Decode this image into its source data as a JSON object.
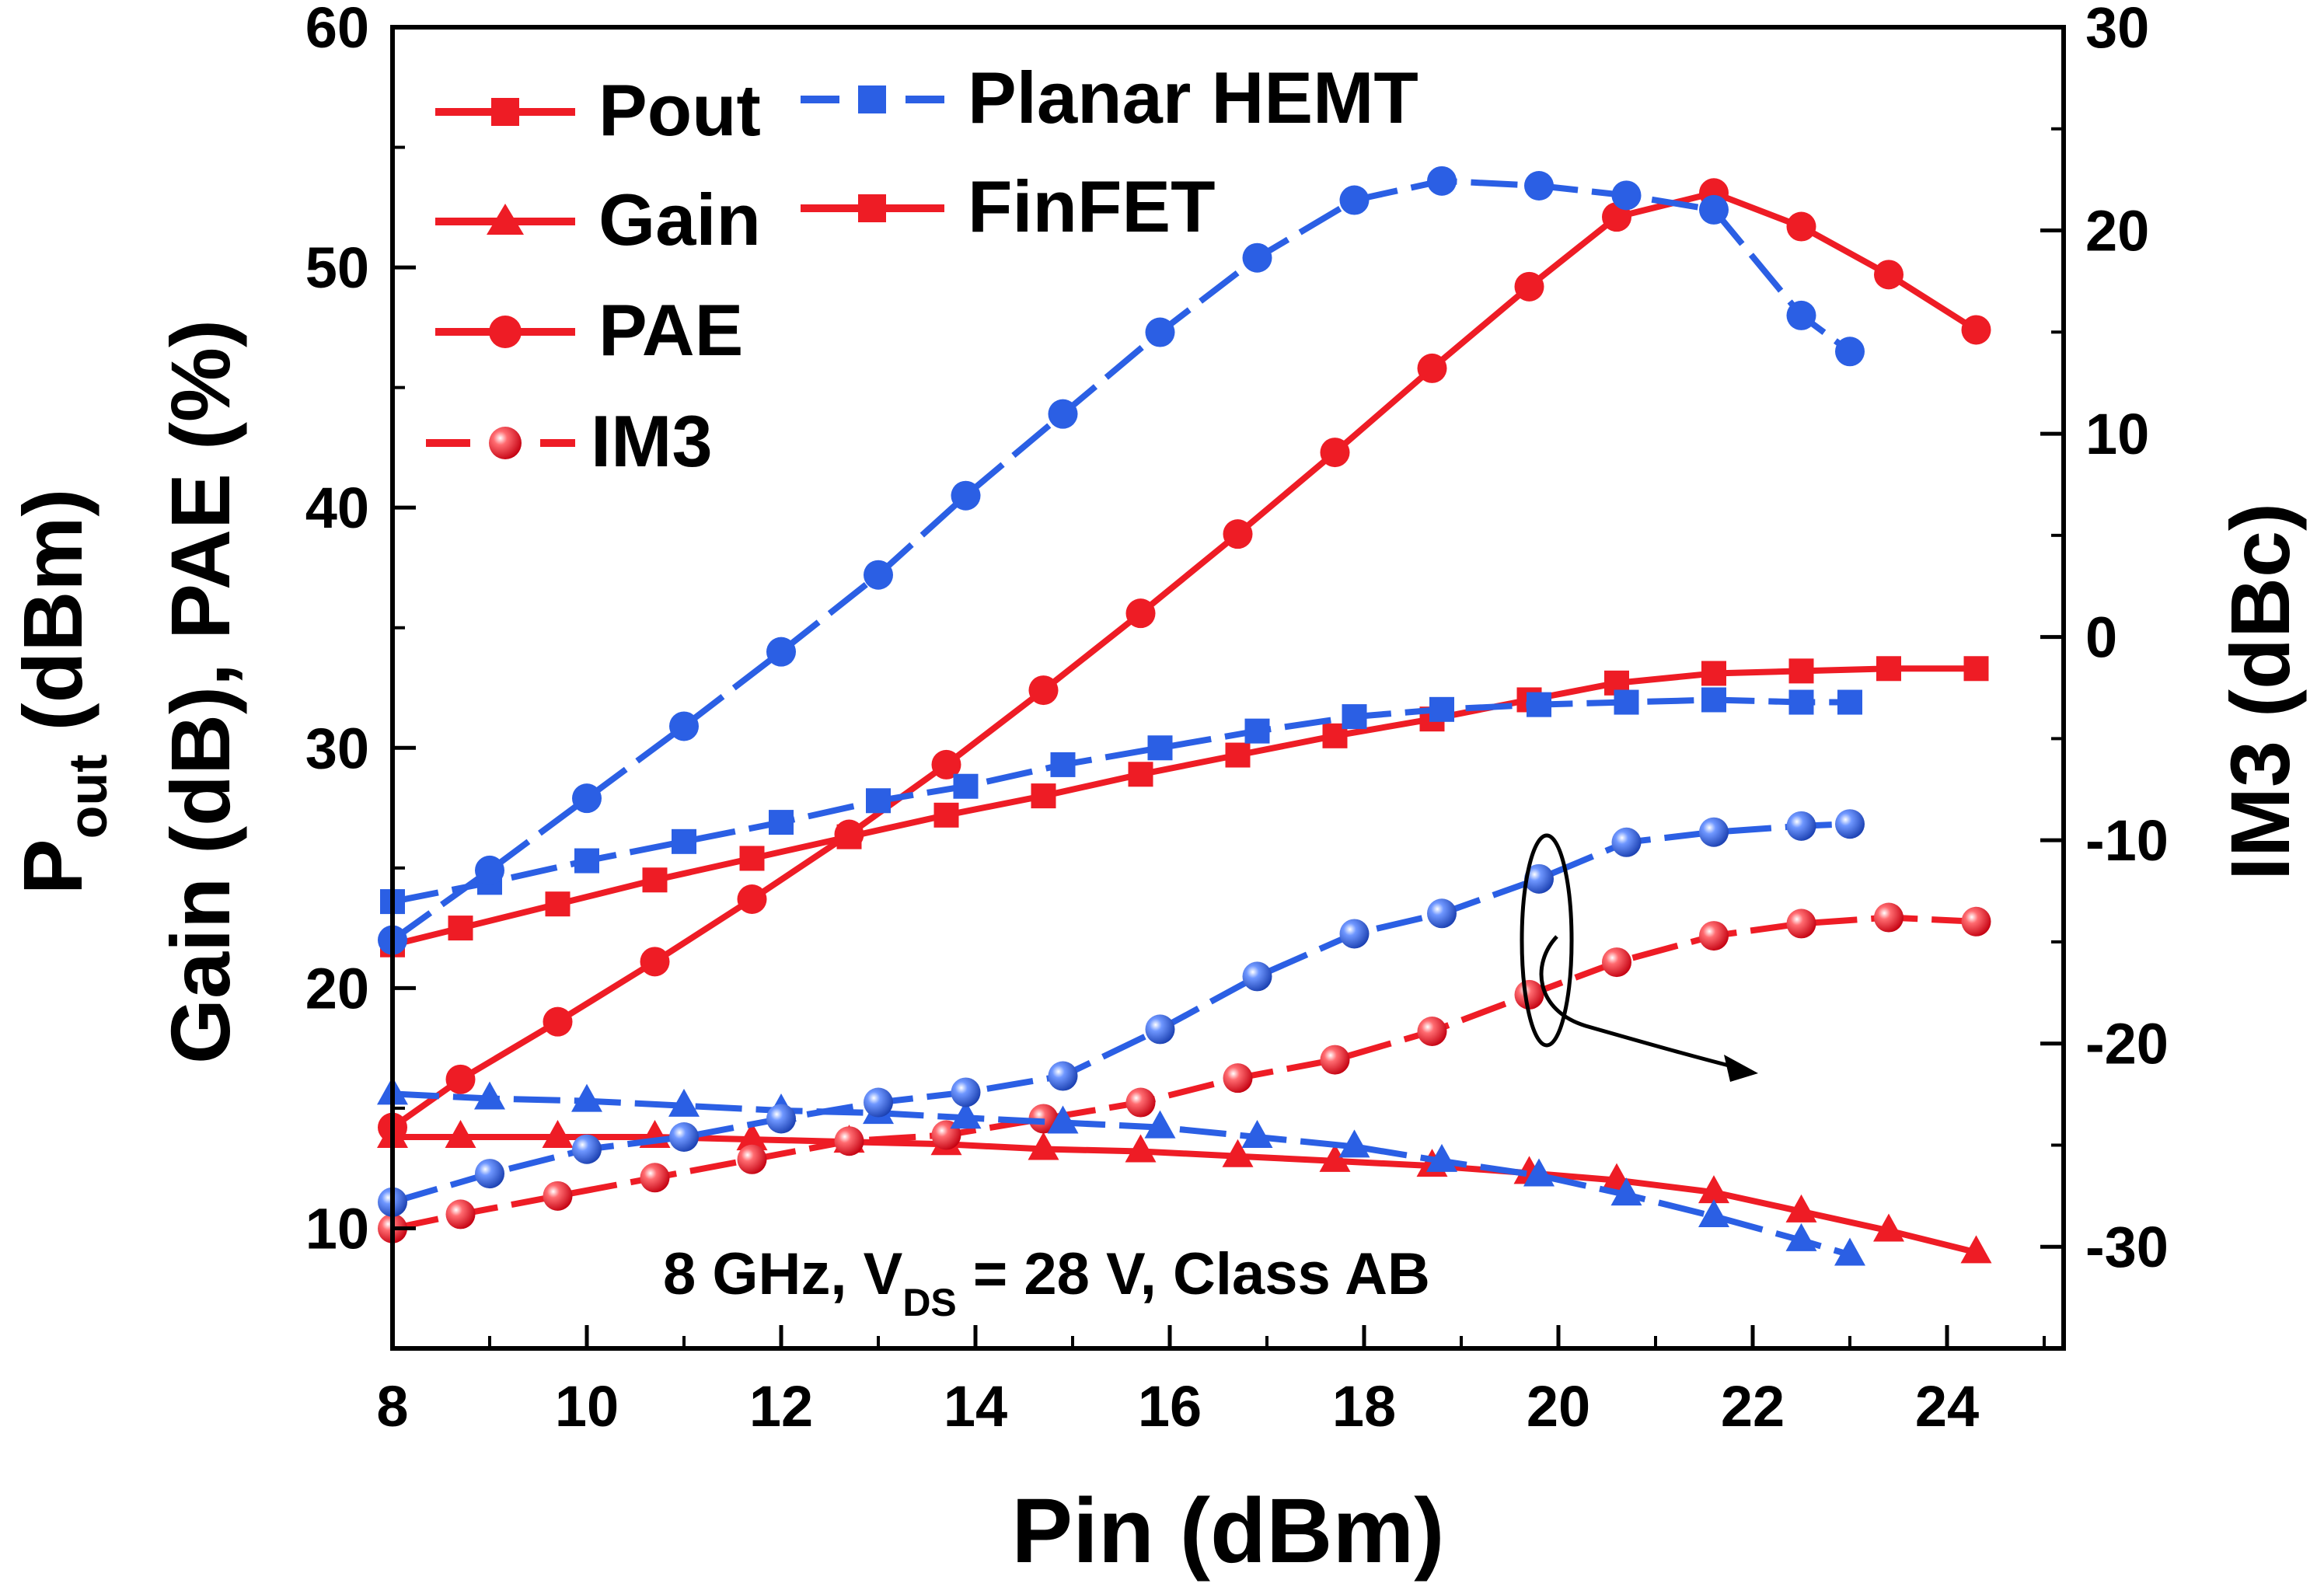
{
  "chart_data": {
    "type": "line",
    "xlabel": "Pin (dBm)",
    "ylabel_left": {
      "main": "P",
      "sub": "out",
      "rest": " (dBm)",
      "line2": "Gain (dB), PAE (%)"
    },
    "ylabel_right": "IM3 (dBc)",
    "xlim": [
      8,
      25.2
    ],
    "ylim_left": [
      5,
      60
    ],
    "ylim_right": [
      -35,
      30
    ],
    "xticks": [
      "8",
      "10",
      "12",
      "14",
      "16",
      "18",
      "20",
      "22",
      "24"
    ],
    "yticks_left": [
      "10",
      "20",
      "30",
      "40",
      "50",
      "60"
    ],
    "yticks_right": [
      "-30",
      "-20",
      "-10",
      "0",
      "10",
      "20",
      "30"
    ],
    "colors": {
      "FinFET": "#ee1c25",
      "Planar HEMT": "#2b5fe4"
    },
    "legend": {
      "metrics": [
        "Pout",
        "Gain",
        "PAE",
        "IM3"
      ],
      "devices": [
        "Planar HEMT",
        "FinFET"
      ]
    },
    "annotation": {
      "pre": "8 GHz, V",
      "sub": "DS",
      "post": " = 28 V, Class AB"
    },
    "series": [
      {
        "name": "Pout",
        "device": "FinFET",
        "marker": "square",
        "axis": "left",
        "x": [
          8,
          8.7,
          9.7,
          10.7,
          11.7,
          12.7,
          13.7,
          14.7,
          15.7,
          16.7,
          17.7,
          18.7,
          19.7,
          20.6,
          21.6,
          22.5,
          23.4,
          24.3
        ],
        "y": [
          21.8,
          22.5,
          23.5,
          24.5,
          25.4,
          26.3,
          27.2,
          28.0,
          28.9,
          29.7,
          30.5,
          31.2,
          32.0,
          32.7,
          33.1,
          33.2,
          33.3,
          33.3
        ]
      },
      {
        "name": "Gain",
        "device": "FinFET",
        "marker": "triangle",
        "axis": "left",
        "x": [
          8,
          8.7,
          9.7,
          10.7,
          11.7,
          12.7,
          13.7,
          14.7,
          15.7,
          16.7,
          17.7,
          18.7,
          19.7,
          20.6,
          21.6,
          22.5,
          23.4,
          24.3
        ],
        "y": [
          13.8,
          13.8,
          13.8,
          13.8,
          13.7,
          13.6,
          13.5,
          13.3,
          13.2,
          13.0,
          12.8,
          12.6,
          12.3,
          12.0,
          11.5,
          10.7,
          9.9,
          9.0
        ]
      },
      {
        "name": "PAE",
        "device": "FinFET",
        "marker": "circle",
        "axis": "left",
        "x": [
          8,
          8.7,
          9.7,
          10.7,
          11.7,
          12.7,
          13.7,
          14.7,
          15.7,
          16.7,
          17.7,
          18.7,
          19.7,
          20.6,
          21.6,
          22.5,
          23.4,
          24.3
        ],
        "y": [
          14.2,
          16.2,
          18.6,
          21.1,
          23.7,
          26.4,
          29.3,
          32.4,
          35.6,
          38.9,
          42.3,
          45.8,
          49.2,
          52.1,
          53.1,
          51.7,
          49.7,
          47.4
        ]
      },
      {
        "name": "IM3",
        "device": "FinFET",
        "marker": "ball",
        "axis": "right",
        "x": [
          8,
          8.7,
          9.7,
          10.7,
          11.7,
          12.7,
          13.7,
          14.7,
          15.7,
          16.7,
          17.7,
          18.7,
          19.7,
          20.6,
          21.6,
          22.5,
          23.4,
          24.3
        ],
        "y": [
          -29.1,
          -28.4,
          -27.5,
          -26.6,
          -25.7,
          -24.8,
          -24.5,
          -23.7,
          -22.9,
          -21.7,
          -20.8,
          -19.4,
          -17.6,
          -16.0,
          -14.7,
          -14.1,
          -13.8,
          -14.0
        ]
      },
      {
        "name": "Pout",
        "device": "Planar HEMT",
        "marker": "square",
        "axis": "left",
        "x": [
          8,
          9,
          10,
          11,
          12,
          13,
          13.9,
          14.9,
          15.9,
          16.9,
          17.9,
          18.8,
          19.8,
          20.7,
          21.6,
          22.5,
          23.0
        ],
        "y": [
          23.6,
          24.4,
          25.3,
          26.1,
          26.9,
          27.8,
          28.4,
          29.3,
          30.0,
          30.7,
          31.3,
          31.6,
          31.8,
          31.9,
          32.0,
          31.9,
          31.9
        ]
      },
      {
        "name": "Gain",
        "device": "Planar HEMT",
        "marker": "triangle",
        "axis": "left",
        "x": [
          8,
          9,
          10,
          11,
          12,
          13,
          13.9,
          14.9,
          15.9,
          16.9,
          17.9,
          18.8,
          19.8,
          20.7,
          21.6,
          22.5,
          23.0
        ],
        "y": [
          15.6,
          15.4,
          15.3,
          15.1,
          14.9,
          14.8,
          14.6,
          14.4,
          14.2,
          13.8,
          13.4,
          12.8,
          12.2,
          11.4,
          10.5,
          9.5,
          8.9
        ]
      },
      {
        "name": "PAE",
        "device": "Planar HEMT",
        "marker": "circle",
        "axis": "left",
        "x": [
          8,
          9,
          10,
          11,
          12,
          13,
          13.9,
          14.9,
          15.9,
          16.9,
          17.9,
          18.8,
          19.8,
          20.7,
          21.6,
          22.5,
          23.0
        ],
        "y": [
          22.0,
          24.9,
          27.9,
          30.9,
          34.0,
          37.2,
          40.5,
          43.9,
          47.3,
          50.4,
          52.8,
          53.6,
          53.4,
          53.0,
          52.4,
          48.0,
          46.5
        ]
      },
      {
        "name": "IM3",
        "device": "Planar HEMT",
        "marker": "ball",
        "axis": "right",
        "x": [
          8,
          9,
          10,
          11,
          12,
          13,
          13.9,
          14.9,
          15.9,
          16.9,
          17.9,
          18.8,
          19.8,
          20.7,
          21.6,
          22.5,
          23.0
        ],
        "y": [
          -27.8,
          -26.4,
          -25.2,
          -24.6,
          -23.7,
          -22.9,
          -22.4,
          -21.6,
          -19.3,
          -16.7,
          -14.6,
          -13.6,
          -11.9,
          -10.1,
          -9.6,
          -9.3,
          -9.2
        ]
      }
    ]
  }
}
